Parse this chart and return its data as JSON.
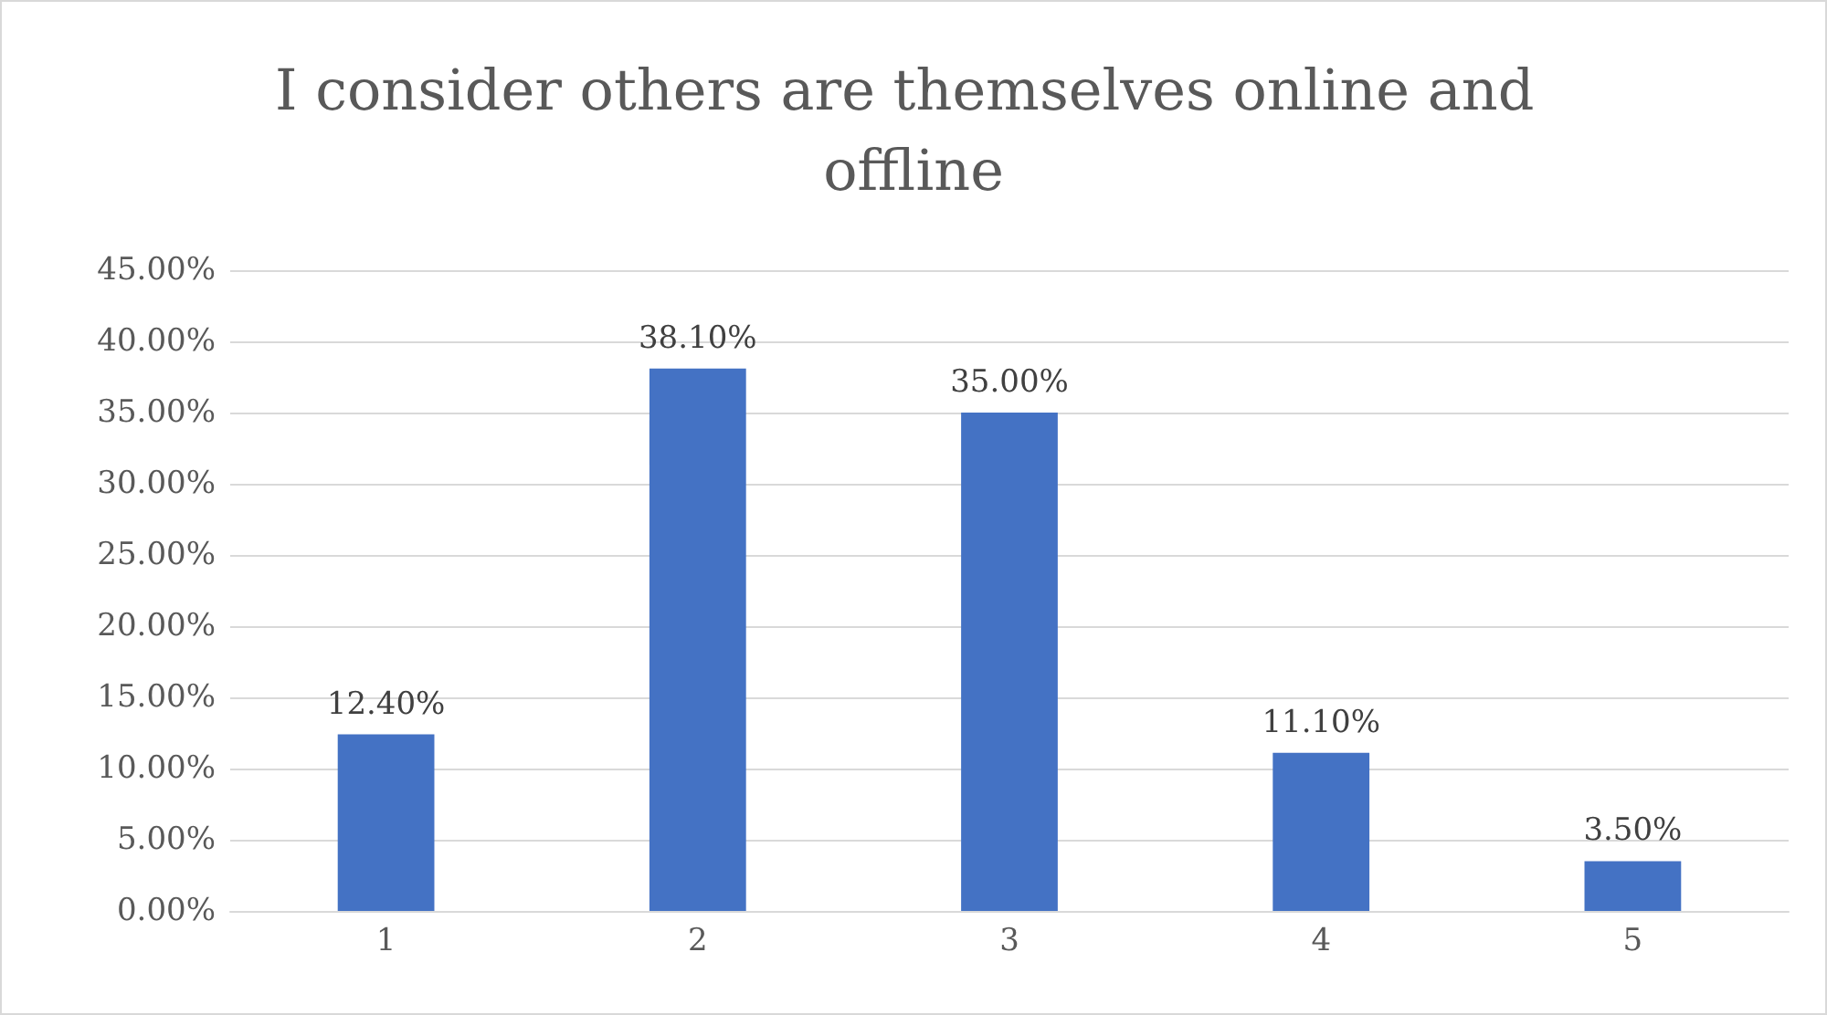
{
  "chart_data": {
    "type": "bar",
    "title": "I consider others are themselves online and offline",
    "categories": [
      "1",
      "2",
      "3",
      "4",
      "5"
    ],
    "values": [
      12.4,
      38.1,
      35,
      11.1,
      3.5
    ],
    "value_labels": [
      "12.40%",
      "38.10%",
      "35.00%",
      "11.10%",
      "3.50%"
    ],
    "color": "#4472c4",
    "ylim": [
      0,
      45
    ],
    "yticks": [
      {
        "value": 0,
        "label": "0.00%"
      },
      {
        "value": 5,
        "label": "5.00%"
      },
      {
        "value": 10,
        "label": "10.00%"
      },
      {
        "value": 15,
        "label": "15.00%"
      },
      {
        "value": 20,
        "label": "20.00%"
      },
      {
        "value": 25,
        "label": "25.00%"
      },
      {
        "value": 30,
        "label": "30.00%"
      },
      {
        "value": 35,
        "label": "35.00%"
      },
      {
        "value": 40,
        "label": "40.00%"
      },
      {
        "value": 45,
        "label": "45.00%"
      }
    ],
    "grid": "y"
  }
}
